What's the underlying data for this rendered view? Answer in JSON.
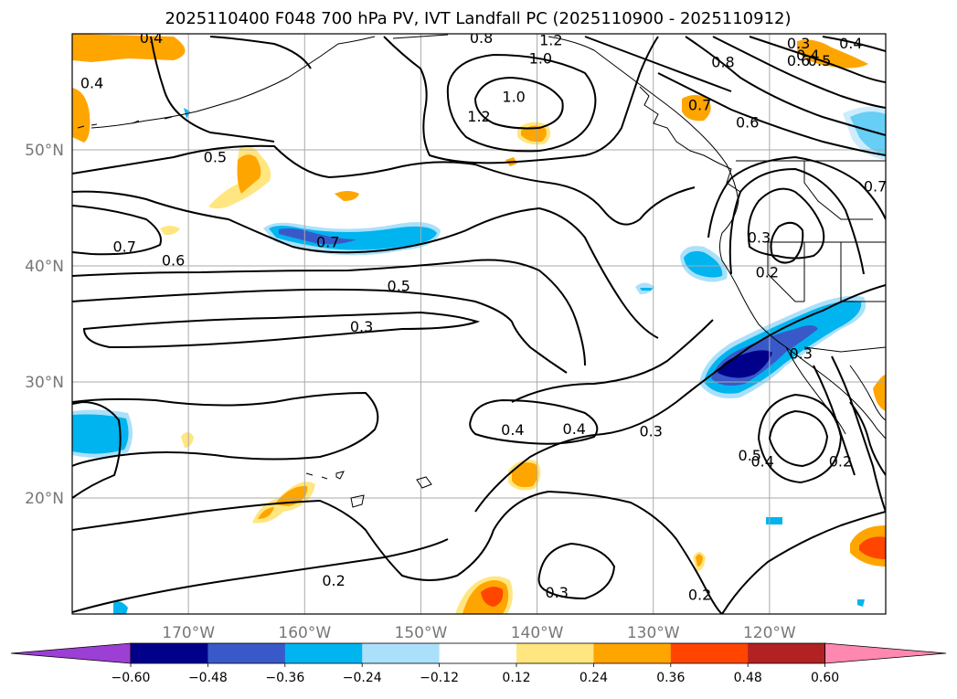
{
  "title": "2025110400 F048 700 hPa PV, IVT Landfall PC (2025110900 - 2025110912)",
  "map": {
    "lon_ticks": [
      "170°W",
      "160°W",
      "150°W",
      "140°W",
      "130°W",
      "120°W"
    ],
    "lat_ticks": [
      "50°N",
      "40°N",
      "30°N",
      "20°N"
    ],
    "lon_values": [
      -170,
      -160,
      -150,
      -140,
      -130,
      -120
    ],
    "lat_values": [
      50,
      40,
      30,
      20
    ],
    "lon_range": [
      -180,
      -110
    ],
    "lat_range": [
      10,
      60
    ],
    "grid": true
  },
  "contour_labels": [
    {
      "text": "0.4",
      "lon": -173.2,
      "lat": 59.7
    },
    {
      "text": "0.8",
      "lon": -144.8,
      "lat": 59.7
    },
    {
      "text": "1.2",
      "lon": -138.8,
      "lat": 59.5
    },
    {
      "text": "0.3",
      "lon": -117.5,
      "lat": 59.2
    },
    {
      "text": "0.4",
      "lon": -113.0,
      "lat": 59.2
    },
    {
      "text": "1.0",
      "lon": -139.7,
      "lat": 57.9
    },
    {
      "text": "0.8",
      "lon": -124.0,
      "lat": 57.6
    },
    {
      "text": "0.6",
      "lon": -117.5,
      "lat": 57.7
    },
    {
      "text": "0.5",
      "lon": -115.7,
      "lat": 57.7
    },
    {
      "text": "0.4",
      "lon": -116.7,
      "lat": 58.2
    },
    {
      "text": "0.4",
      "lon": -178.3,
      "lat": 55.8
    },
    {
      "text": "1.0",
      "lon": -142.0,
      "lat": 54.6
    },
    {
      "text": "1.2",
      "lon": -145.0,
      "lat": 52.9
    },
    {
      "text": "0.7",
      "lon": -126.0,
      "lat": 53.9
    },
    {
      "text": "0.6",
      "lon": -121.9,
      "lat": 52.4
    },
    {
      "text": "0.5",
      "lon": -167.7,
      "lat": 49.4
    },
    {
      "text": "0.7",
      "lon": -110.9,
      "lat": 46.9
    },
    {
      "text": "0.7",
      "lon": -158.0,
      "lat": 42.1
    },
    {
      "text": "0.3",
      "lon": -120.9,
      "lat": 42.5
    },
    {
      "text": "0.7",
      "lon": -175.5,
      "lat": 41.7
    },
    {
      "text": "0.6",
      "lon": -171.3,
      "lat": 40.5
    },
    {
      "text": "0.2",
      "lon": -120.2,
      "lat": 39.5
    },
    {
      "text": "0.5",
      "lon": -151.9,
      "lat": 38.3
    },
    {
      "text": "0.3",
      "lon": -155.1,
      "lat": 34.8
    },
    {
      "text": "0.3",
      "lon": -117.3,
      "lat": 32.5
    },
    {
      "text": "0.4",
      "lon": -142.1,
      "lat": 25.9
    },
    {
      "text": "0.4",
      "lon": -136.8,
      "lat": 26.0
    },
    {
      "text": "0.3",
      "lon": -130.2,
      "lat": 25.8
    },
    {
      "text": "0.5",
      "lon": -121.7,
      "lat": 23.7
    },
    {
      "text": "0.4",
      "lon": -120.6,
      "lat": 23.2
    },
    {
      "text": "0.2",
      "lon": -113.9,
      "lat": 23.2
    },
    {
      "text": "0.2",
      "lon": -157.5,
      "lat": 12.9
    },
    {
      "text": "0.3",
      "lon": -138.3,
      "lat": 11.9
    },
    {
      "text": "0.2",
      "lon": -126.0,
      "lat": 11.7
    }
  ],
  "colorbar": {
    "ticks": [
      "−0.60",
      "−0.48",
      "−0.36",
      "−0.24",
      "−0.12",
      "0.12",
      "0.24",
      "0.36",
      "0.48",
      "0.60"
    ],
    "boundaries": [
      -0.6,
      -0.48,
      -0.36,
      -0.24,
      -0.12,
      0.12,
      0.24,
      0.36,
      0.48,
      0.6
    ],
    "under_color": "#9c3fd4",
    "over_color": "#ff88b0",
    "colors": [
      "#00008b",
      "#3959c9",
      "#00b4f0",
      "#abe0fa",
      "#ffffff",
      "#ffe680",
      "#ffa500",
      "#ff4500",
      "#b22222"
    ]
  },
  "fill_colors": {
    "positive_1": "#ffe680",
    "positive_2": "#ffa500",
    "positive_3": "#ff4500",
    "negative_1": "#abe0fa",
    "negative_2": "#00b4f0",
    "negative_3": "#3959c9",
    "negative_4": "#00008b"
  }
}
